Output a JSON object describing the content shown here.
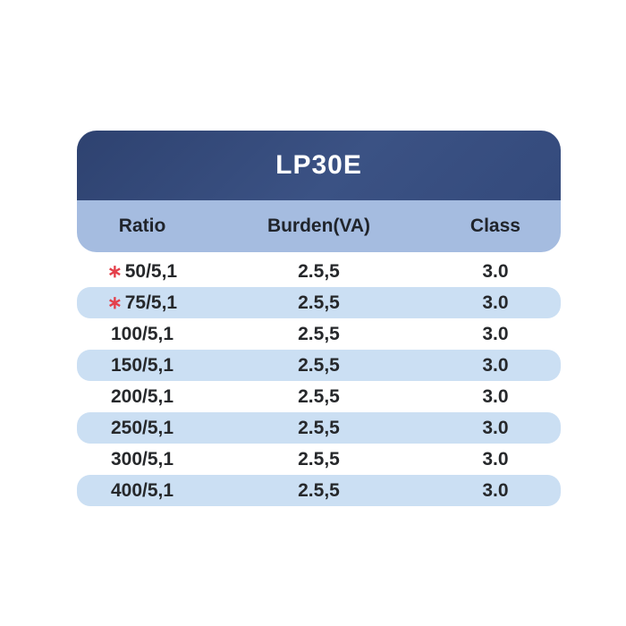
{
  "table": {
    "title": "LP30E",
    "columns": [
      "Ratio",
      "Burden(VA)",
      "Class"
    ],
    "rows": [
      {
        "marker": "∗",
        "ratio": "50/5,1",
        "burden": "2.5,5",
        "class": "3.0"
      },
      {
        "marker": "∗",
        "ratio": "75/5,1",
        "burden": "2.5,5",
        "class": "3.0"
      },
      {
        "marker": "",
        "ratio": "100/5,1",
        "burden": "2.5,5",
        "class": "3.0"
      },
      {
        "marker": "",
        "ratio": "150/5,1",
        "burden": "2.5,5",
        "class": "3.0"
      },
      {
        "marker": "",
        "ratio": "200/5,1",
        "burden": "2.5,5",
        "class": "3.0"
      },
      {
        "marker": "",
        "ratio": "250/5,1",
        "burden": "2.5,5",
        "class": "3.0"
      },
      {
        "marker": "",
        "ratio": "300/5,1",
        "burden": "2.5,5",
        "class": "3.0"
      },
      {
        "marker": "",
        "ratio": "400/5,1",
        "burden": "2.5,5",
        "class": "3.0"
      }
    ],
    "colors": {
      "header_bg": "#344a7c",
      "header_text": "#ffffff",
      "subheader_bg": "#a5bce0",
      "stripe_bg": "#cbdff3",
      "cell_text": "#26282b",
      "marker_red": "#e4404b"
    }
  }
}
